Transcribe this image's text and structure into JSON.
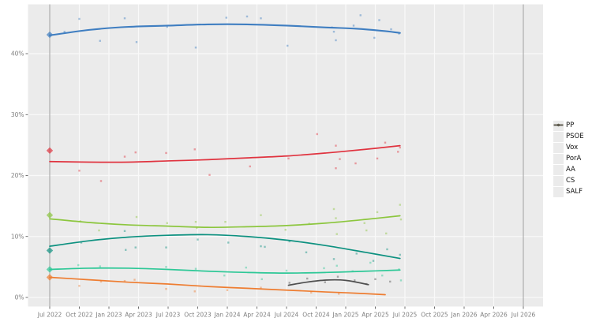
{
  "chart_data": {
    "type": "line",
    "title": "",
    "xlabel": "",
    "ylabel": "",
    "x_unit": "months since Jul 2022",
    "x_axis": {
      "tick_months": [
        0,
        3,
        6,
        9,
        12,
        15,
        18,
        21,
        24,
        27,
        30,
        33,
        36,
        39,
        42,
        45,
        48
      ],
      "tick_labels": [
        "Jul 2022",
        "Oct 2022",
        "Jan 2023",
        "Apr 2023",
        "Jul 2023",
        "Oct 2023",
        "Jan 2024",
        "Apr 2024",
        "Jul 2024",
        "Oct 2024",
        "Jan 2025",
        "Apr 2025",
        "Jul 2025",
        "Oct 2025",
        "Jan 2026",
        "Apr 2026",
        "Jul 2026"
      ],
      "range_months": [
        -2.2,
        50
      ]
    },
    "y_axis": {
      "tick_values": [
        0,
        10,
        20,
        30,
        40
      ],
      "tick_labels": [
        "0%",
        "10%",
        "20%",
        "30%",
        "40%"
      ],
      "range": [
        -1.5,
        48.1
      ]
    },
    "grid": "white major gridlines on gray panel",
    "election_marker_months": [
      0,
      48
    ],
    "legend_position": "right",
    "series": [
      {
        "name": "PP",
        "color": "#3f7ec1",
        "election_result_2022": 43.1,
        "trend": [
          [
            0,
            43.0
          ],
          [
            4,
            43.9
          ],
          [
            8,
            44.4
          ],
          [
            12,
            44.6
          ],
          [
            16,
            44.8
          ],
          [
            20,
            44.8
          ],
          [
            24,
            44.6
          ],
          [
            28,
            44.3
          ],
          [
            31,
            44.1
          ],
          [
            34,
            43.7
          ],
          [
            35.5,
            43.4
          ]
        ],
        "polls": [
          [
            1.5,
            43.6
          ],
          [
            3.0,
            45.7
          ],
          [
            5.1,
            42.1
          ],
          [
            7.6,
            45.8
          ],
          [
            8.8,
            41.9
          ],
          [
            11.9,
            44.4
          ],
          [
            14.8,
            41.0
          ],
          [
            17.9,
            45.9
          ],
          [
            20.0,
            46.1
          ],
          [
            21.4,
            45.8
          ],
          [
            24.1,
            41.3
          ],
          [
            28.6,
            44.3
          ],
          [
            28.8,
            43.6
          ],
          [
            29.0,
            42.2
          ],
          [
            30.8,
            44.6
          ],
          [
            31.5,
            46.3
          ],
          [
            32.9,
            42.6
          ],
          [
            33.4,
            45.5
          ],
          [
            34.6,
            44.0
          ],
          [
            35.4,
            43.3
          ]
        ]
      },
      {
        "name": "PSOE",
        "color": "#e0333f",
        "election_result_2022": 24.1,
        "trend": [
          [
            0,
            22.3
          ],
          [
            4,
            22.2
          ],
          [
            8,
            22.2
          ],
          [
            12,
            22.4
          ],
          [
            16,
            22.6
          ],
          [
            20,
            22.9
          ],
          [
            24,
            23.2
          ],
          [
            28,
            23.7
          ],
          [
            32,
            24.3
          ],
          [
            35.5,
            24.9
          ]
        ],
        "polls": [
          [
            3.0,
            20.8
          ],
          [
            5.2,
            19.1
          ],
          [
            7.6,
            23.1
          ],
          [
            8.7,
            23.8
          ],
          [
            11.8,
            23.7
          ],
          [
            14.7,
            24.3
          ],
          [
            16.2,
            20.1
          ],
          [
            20.3,
            21.5
          ],
          [
            24.2,
            22.8
          ],
          [
            27.1,
            26.8
          ],
          [
            29.0,
            24.9
          ],
          [
            29.0,
            21.2
          ],
          [
            29.4,
            22.7
          ],
          [
            31.0,
            22.0
          ],
          [
            33.2,
            22.8
          ],
          [
            34.0,
            25.4
          ],
          [
            35.3,
            23.9
          ],
          [
            35.5,
            24.6
          ]
        ]
      },
      {
        "name": "Vox",
        "color": "#8cc63e",
        "election_result_2022": 13.5,
        "trend": [
          [
            0,
            12.9
          ],
          [
            4,
            12.3
          ],
          [
            8,
            11.9
          ],
          [
            12,
            11.7
          ],
          [
            16,
            11.5
          ],
          [
            20,
            11.6
          ],
          [
            24,
            11.8
          ],
          [
            28,
            12.2
          ],
          [
            32,
            12.8
          ],
          [
            35.5,
            13.4
          ]
        ],
        "polls": [
          [
            3.1,
            12.5
          ],
          [
            5.0,
            11.0
          ],
          [
            8.8,
            13.2
          ],
          [
            11.9,
            12.2
          ],
          [
            14.8,
            12.4
          ],
          [
            14.9,
            11.4
          ],
          [
            17.8,
            12.4
          ],
          [
            21.4,
            13.5
          ],
          [
            23.9,
            11.1
          ],
          [
            26.3,
            12.1
          ],
          [
            28.8,
            14.5
          ],
          [
            29.0,
            13.0
          ],
          [
            29.1,
            10.4
          ],
          [
            31.9,
            12.2
          ],
          [
            32.1,
            11.0
          ],
          [
            33.2,
            14.0
          ],
          [
            34.1,
            10.5
          ],
          [
            35.5,
            15.2
          ],
          [
            35.6,
            12.8
          ]
        ]
      },
      {
        "name": "PorA",
        "color": "#0d9180",
        "election_result_2022": 7.7,
        "trend": [
          [
            0,
            8.4
          ],
          [
            4,
            9.3
          ],
          [
            8,
            9.9
          ],
          [
            12,
            10.2
          ],
          [
            16,
            10.3
          ],
          [
            20,
            10.0
          ],
          [
            24,
            9.4
          ],
          [
            28,
            8.5
          ],
          [
            32,
            7.4
          ],
          [
            35.5,
            6.4
          ]
        ],
        "polls": [
          [
            3.2,
            9.0
          ],
          [
            7.6,
            10.9
          ],
          [
            7.7,
            7.8
          ],
          [
            8.7,
            8.2
          ],
          [
            11.8,
            8.2
          ],
          [
            15.0,
            9.5
          ],
          [
            18.1,
            9.0
          ],
          [
            21.4,
            8.4
          ],
          [
            21.8,
            8.3
          ],
          [
            24.3,
            9.2
          ],
          [
            26.0,
            7.4
          ],
          [
            28.8,
            6.3
          ],
          [
            31.1,
            7.2
          ],
          [
            32.8,
            6.0
          ],
          [
            34.2,
            7.9
          ],
          [
            35.5,
            7.0
          ]
        ]
      },
      {
        "name": "AA",
        "color": "#2ec897",
        "election_result_2022": 4.6,
        "trend": [
          [
            0,
            4.6
          ],
          [
            4,
            4.8
          ],
          [
            8,
            4.8
          ],
          [
            12,
            4.6
          ],
          [
            16,
            4.3
          ],
          [
            20,
            4.1
          ],
          [
            24,
            4.0
          ],
          [
            28,
            4.1
          ],
          [
            32,
            4.3
          ],
          [
            35.5,
            4.5
          ]
        ],
        "polls": [
          [
            2.9,
            5.3
          ],
          [
            5.1,
            5.1
          ],
          [
            11.8,
            5.0
          ],
          [
            14.8,
            4.7
          ],
          [
            17.7,
            3.6
          ],
          [
            19.9,
            4.9
          ],
          [
            21.5,
            3.0
          ],
          [
            24.0,
            4.4
          ],
          [
            27.8,
            4.8
          ],
          [
            29.1,
            5.2
          ],
          [
            30.7,
            4.3
          ],
          [
            32.5,
            5.7
          ],
          [
            33.7,
            3.6
          ],
          [
            35.4,
            4.6
          ],
          [
            35.6,
            2.8
          ]
        ]
      },
      {
        "name": "CS",
        "color": "#ee7d31",
        "election_result_2022": 3.3,
        "trend": [
          [
            0,
            3.3
          ],
          [
            4,
            2.9
          ],
          [
            8,
            2.5
          ],
          [
            12,
            2.2
          ],
          [
            16,
            1.8
          ],
          [
            20,
            1.5
          ],
          [
            24,
            1.2
          ],
          [
            28,
            0.9
          ],
          [
            31,
            0.7
          ],
          [
            34,
            0.45
          ]
        ],
        "polls": [
          [
            3.0,
            1.9
          ],
          [
            5.2,
            2.6
          ],
          [
            7.6,
            2.7
          ],
          [
            8.6,
            2.9
          ],
          [
            11.8,
            1.4
          ],
          [
            14.7,
            1.0
          ],
          [
            18.0,
            1.2
          ],
          [
            21.4,
            1.6
          ],
          [
            26.5,
            0.8
          ],
          [
            29.3,
            0.6
          ]
        ]
      },
      {
        "name": "SALF",
        "color": "#4f4f4f",
        "election_result_2022": null,
        "trend": [
          [
            24.2,
            2.0
          ],
          [
            26,
            2.5
          ],
          [
            28,
            2.85
          ],
          [
            30,
            2.8
          ],
          [
            32.3,
            2.1
          ]
        ],
        "polls": [
          [
            24.3,
            2.4
          ],
          [
            26.1,
            3.1
          ],
          [
            27.9,
            2.5
          ],
          [
            29.2,
            3.4
          ],
          [
            30.9,
            2.8
          ],
          [
            32.1,
            2.2
          ],
          [
            33.0,
            3.0
          ],
          [
            34.5,
            2.6
          ]
        ]
      }
    ],
    "colors": {
      "panel_bg": "#ebebeb",
      "gridline": "#f9f9f9",
      "election_line": "#9e9e9e",
      "axis_text": "#7f7f7f",
      "tick_mark": "#333333"
    }
  }
}
